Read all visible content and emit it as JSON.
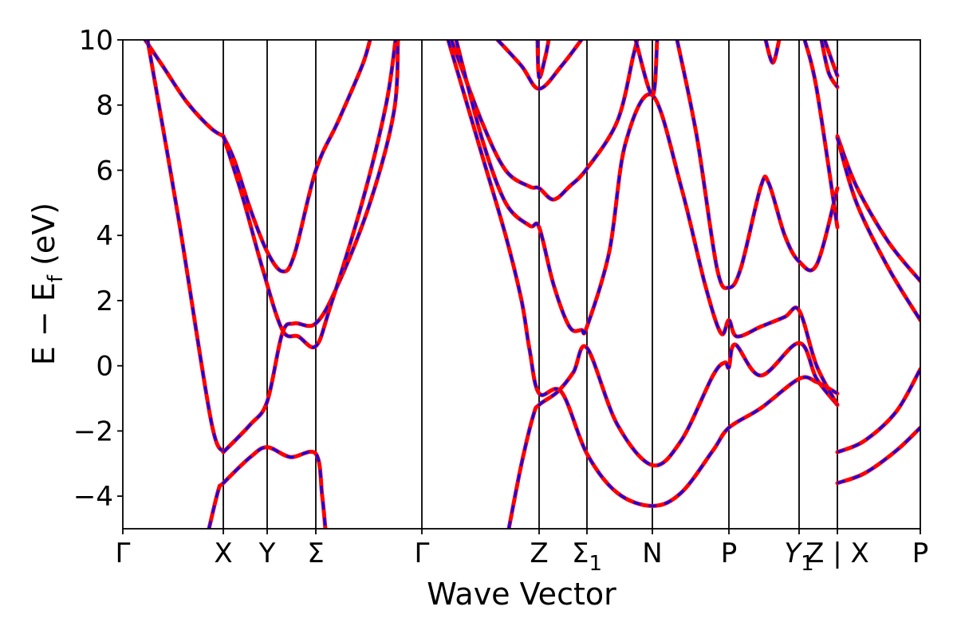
{
  "chart_data": {
    "type": "line",
    "title": "",
    "xlabel": "Wave Vector",
    "ylabel": "E − E_f (eV)",
    "ylabel_main": "E − E",
    "ylabel_sub": "f",
    "ylabel_unit": " (eV)",
    "ylim": [
      -5,
      10
    ],
    "xlim": [
      0,
      1
    ],
    "yticks": [
      10,
      8,
      6,
      4,
      2,
      0,
      -2,
      -4
    ],
    "ytick_labels": [
      "10",
      "8",
      "6",
      "4",
      "2",
      "0",
      "−2",
      "−4"
    ],
    "kpoints": [
      {
        "x": 0.0,
        "main": "Γ",
        "sub": ""
      },
      {
        "x": 0.126,
        "main": "X",
        "sub": ""
      },
      {
        "x": 0.181,
        "main": "Y",
        "sub": ""
      },
      {
        "x": 0.242,
        "main": "Σ",
        "sub": ""
      },
      {
        "x": 0.375,
        "main": "Γ",
        "sub": ""
      },
      {
        "x": 0.522,
        "main": "Z",
        "sub": ""
      },
      {
        "x": 0.582,
        "main": "Σ",
        "sub": "1"
      },
      {
        "x": 0.664,
        "main": "N",
        "sub": ""
      },
      {
        "x": 0.76,
        "main": "P",
        "sub": ""
      },
      {
        "x": 0.848,
        "main": "Y",
        "sub": "1"
      },
      {
        "x": 0.896,
        "main": "Z | X",
        "sub": ""
      },
      {
        "x": 1.0,
        "main": "P",
        "sub": ""
      }
    ],
    "grid": false,
    "series_style": {
      "solid_color": "#ff0000",
      "dashed_color": "#0000ff"
    },
    "bands": [
      {
        "segments": [
          [
            [
              0.028,
              10
            ],
            [
              0.05,
              9.2
            ],
            [
              0.08,
              8.1
            ],
            [
              0.11,
              7.3
            ],
            [
              0.126,
              7.05
            ]
          ],
          [
            [
              0.126,
              7.05
            ],
            [
              0.14,
              6.3
            ],
            [
              0.16,
              4.8
            ],
            [
              0.181,
              3.5
            ],
            [
              0.2,
              2.9
            ],
            [
              0.215,
              3.4
            ],
            [
              0.242,
              6.0
            ],
            [
              0.27,
              7.5
            ],
            [
              0.3,
              9.2
            ],
            [
              0.31,
              10
            ]
          ]
        ]
      },
      {
        "segments": [
          [
            [
              0.031,
              10
            ],
            [
              0.07,
              4.5
            ],
            [
              0.11,
              -1.6
            ],
            [
              0.126,
              -2.65
            ]
          ],
          [
            [
              0.126,
              -2.65
            ],
            [
              0.16,
              -1.8
            ],
            [
              0.181,
              -1.1
            ],
            [
              0.2,
              1.0
            ],
            [
              0.215,
              1.3
            ],
            [
              0.242,
              1.3
            ],
            [
              0.27,
              2.5
            ],
            [
              0.31,
              5.0
            ],
            [
              0.34,
              7.8
            ],
            [
              0.345,
              10
            ]
          ]
        ]
      },
      {
        "segments": [
          [
            [
              0.126,
              7.05
            ],
            [
              0.15,
              5.2
            ],
            [
              0.175,
              3.0
            ],
            [
              0.2,
              1.1
            ],
            [
              0.22,
              0.9
            ],
            [
              0.242,
              0.6
            ],
            [
              0.26,
              1.8
            ],
            [
              0.3,
              5.0
            ],
            [
              0.33,
              8.0
            ],
            [
              0.342,
              10
            ]
          ]
        ]
      },
      {
        "segments": [
          [
            [
              0.108,
              -5
            ],
            [
              0.12,
              -3.8
            ],
            [
              0.126,
              -3.6
            ],
            [
              0.16,
              -2.8
            ],
            [
              0.181,
              -2.5
            ],
            [
              0.21,
              -2.8
            ],
            [
              0.242,
              -2.7
            ],
            [
              0.25,
              -4.0
            ],
            [
              0.254,
              -5
            ]
          ]
        ]
      },
      {
        "segments": [
          [
            [
              0.408,
              10
            ],
            [
              0.45,
              6.5
            ],
            [
              0.48,
              4.0
            ],
            [
              0.5,
              2.0
            ],
            [
              0.51,
              0.5
            ],
            [
              0.522,
              -0.85
            ],
            [
              0.55,
              -0.8
            ],
            [
              0.582,
              -2.7
            ],
            [
              0.62,
              -3.9
            ],
            [
              0.664,
              -4.3
            ],
            [
              0.7,
              -3.9
            ],
            [
              0.74,
              -2.6
            ],
            [
              0.76,
              -1.9
            ],
            [
              0.8,
              -1.3
            ],
            [
              0.848,
              -0.4
            ],
            [
              0.87,
              -0.5
            ],
            [
              0.896,
              -0.85
            ]
          ]
        ]
      },
      {
        "segments": [
          [
            [
              0.484,
              -5
            ],
            [
              0.5,
              -3.0
            ],
            [
              0.515,
              -1.5
            ],
            [
              0.522,
              -1.2
            ],
            [
              0.545,
              -0.8
            ],
            [
              0.565,
              -0.2
            ],
            [
              0.582,
              0.55
            ],
            [
              0.62,
              -1.8
            ],
            [
              0.664,
              -3.05
            ],
            [
              0.7,
              -2.3
            ],
            [
              0.74,
              -0.3
            ],
            [
              0.755,
              0.1
            ],
            [
              0.76,
              -0.05
            ],
            [
              0.768,
              0.65
            ],
            [
              0.8,
              -0.3
            ],
            [
              0.848,
              0.7
            ],
            [
              0.87,
              -0.4
            ],
            [
              0.896,
              -1.2
            ]
          ]
        ]
      },
      {
        "segments": [
          [
            [
              0.412,
              10
            ],
            [
              0.45,
              7.5
            ],
            [
              0.48,
              6.0
            ],
            [
              0.51,
              5.5
            ],
            [
              0.522,
              5.45
            ],
            [
              0.54,
              5.1
            ],
            [
              0.56,
              5.5
            ],
            [
              0.582,
              6.05
            ],
            [
              0.62,
              7.5
            ],
            [
              0.64,
              9.5
            ],
            [
              0.645,
              10
            ]
          ]
        ]
      },
      {
        "segments": [
          [
            [
              0.418,
              10
            ],
            [
              0.45,
              7.0
            ],
            [
              0.48,
              5.0
            ],
            [
              0.51,
              4.3
            ],
            [
              0.522,
              4.25
            ],
            [
              0.54,
              2.5
            ],
            [
              0.56,
              1.2
            ],
            [
              0.575,
              1.1
            ],
            [
              0.582,
              1.2
            ],
            [
              0.61,
              3.5
            ],
            [
              0.63,
              6.8
            ],
            [
              0.664,
              8.3
            ],
            [
              0.7,
              5.5
            ],
            [
              0.73,
              2.5
            ],
            [
              0.75,
              1.0
            ],
            [
              0.76,
              1.4
            ],
            [
              0.77,
              0.9
            ],
            [
              0.8,
              1.2
            ],
            [
              0.83,
              1.5
            ],
            [
              0.848,
              1.7
            ],
            [
              0.87,
              0.0
            ],
            [
              0.896,
              -1.2
            ]
          ]
        ]
      },
      {
        "segments": [
          [
            [
              0.695,
              10
            ],
            [
              0.72,
              7.0
            ],
            [
              0.745,
              3.0
            ],
            [
              0.76,
              2.4
            ],
            [
              0.775,
              3.0
            ],
            [
              0.8,
              5.5
            ],
            [
              0.81,
              5.6
            ],
            [
              0.83,
              4.0
            ],
            [
              0.848,
              3.2
            ],
            [
              0.87,
              3.1
            ],
            [
              0.896,
              5.45
            ]
          ]
        ]
      },
      {
        "segments": [
          [
            [
              0.855,
              10
            ],
            [
              0.87,
              8.5
            ],
            [
              0.896,
              4.25
            ]
          ]
        ]
      },
      {
        "segments": [
          [
            [
              0.47,
              10
            ],
            [
              0.5,
              9.2
            ],
            [
              0.522,
              8.5
            ],
            [
              0.55,
              9.2
            ],
            [
              0.575,
              10
            ]
          ]
        ]
      },
      {
        "segments": [
          [
            [
              0.52,
              10
            ],
            [
              0.522,
              8.85
            ],
            [
              0.53,
              9.5
            ],
            [
              0.534,
              10
            ]
          ]
        ]
      },
      {
        "segments": [
          [
            [
              0.643,
              10
            ],
            [
              0.664,
              8.3
            ],
            [
              0.67,
              10
            ]
          ]
        ]
      },
      {
        "segments": [
          [
            [
              0.806,
              10
            ],
            [
              0.815,
              9.3
            ],
            [
              0.823,
              10
            ]
          ]
        ]
      },
      {
        "segments": [
          [
            [
              0.876,
              10
            ],
            [
              0.885,
              9.0
            ],
            [
              0.896,
              8.55
            ]
          ]
        ]
      },
      {
        "segments": [
          [
            [
              0.88,
              10
            ],
            [
              0.89,
              9.3
            ],
            [
              0.896,
              8.9
            ]
          ]
        ]
      },
      {
        "segments": [
          [
            [
              0.896,
              7.05
            ],
            [
              0.92,
              5.5
            ],
            [
              0.96,
              3.8
            ],
            [
              1.0,
              2.6
            ]
          ]
        ]
      },
      {
        "segments": [
          [
            [
              0.896,
              7.0
            ],
            [
              0.92,
              5.0
            ],
            [
              0.96,
              3.0
            ],
            [
              1.0,
              1.4
            ]
          ]
        ]
      },
      {
        "segments": [
          [
            [
              0.896,
              -2.65
            ],
            [
              0.93,
              -2.3
            ],
            [
              0.97,
              -1.4
            ],
            [
              1.0,
              -0.1
            ]
          ]
        ]
      },
      {
        "segments": [
          [
            [
              0.896,
              -3.6
            ],
            [
              0.93,
              -3.3
            ],
            [
              0.97,
              -2.6
            ],
            [
              1.0,
              -1.9
            ]
          ]
        ]
      }
    ]
  }
}
